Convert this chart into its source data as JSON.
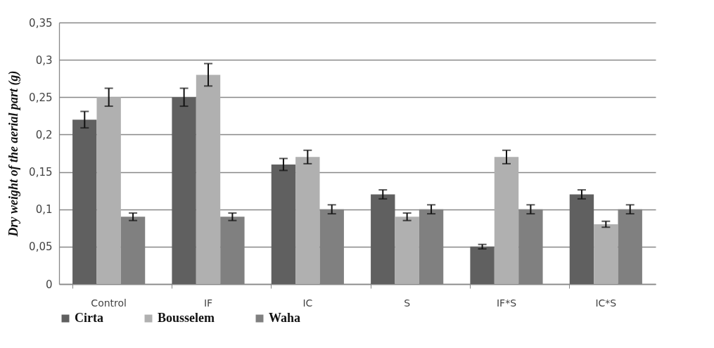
{
  "chart_data": {
    "type": "bar",
    "ylabel": "Dry weight of the aerial part (g)",
    "categories": [
      "Control",
      "IF",
      "IC",
      "S",
      "IF*S",
      "IC*S"
    ],
    "series": [
      {
        "name": "Cirta",
        "color": "#606060",
        "values": [
          0.22,
          0.25,
          0.16,
          0.12,
          0.05,
          0.12
        ],
        "errors": [
          0.011,
          0.012,
          0.008,
          0.006,
          0.003,
          0.006
        ]
      },
      {
        "name": "Bousselem",
        "color": "#b0b0b0",
        "values": [
          0.25,
          0.28,
          0.17,
          0.09,
          0.17,
          0.08
        ],
        "errors": [
          0.012,
          0.015,
          0.009,
          0.005,
          0.009,
          0.004
        ]
      },
      {
        "name": "Waha",
        "color": "#808080",
        "values": [
          0.09,
          0.09,
          0.1,
          0.1,
          0.1,
          0.1
        ],
        "errors": [
          0.005,
          0.005,
          0.006,
          0.006,
          0.006,
          0.006
        ]
      }
    ],
    "ylim": [
      0,
      0.35
    ],
    "yticks": [
      {
        "value": 0,
        "label": "0"
      },
      {
        "value": 0.05,
        "label": "0,05"
      },
      {
        "value": 0.1,
        "label": "0,1"
      },
      {
        "value": 0.15,
        "label": "0,15"
      },
      {
        "value": 0.2,
        "label": "0,2"
      },
      {
        "value": 0.25,
        "label": "0,25"
      },
      {
        "value": 0.3,
        "label": "0,3"
      },
      {
        "value": 0.35,
        "label": "0,35"
      }
    ],
    "grid": "y",
    "legend": "bottom"
  }
}
